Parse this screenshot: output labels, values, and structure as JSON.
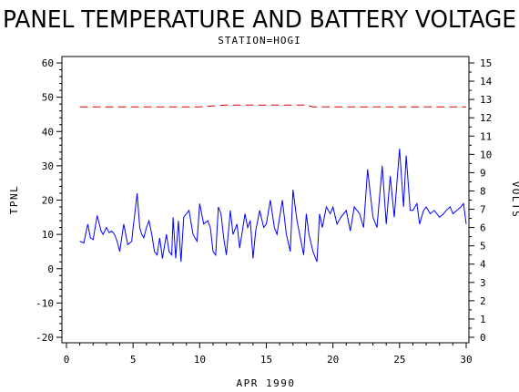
{
  "chart_data": {
    "type": "line",
    "title": "PANEL TEMPERATURE AND BATTERY VOLTAGE",
    "subtitle": "STATION=HOGI",
    "xlabel": "APR 1990",
    "ylabel_left": "TPNL",
    "ylabel_right": "VOLTS",
    "xlim": [
      0,
      30
    ],
    "ylim_left": [
      -20,
      60
    ],
    "ylim_right": [
      0,
      15
    ],
    "x_ticks": [
      "0",
      "5",
      "10",
      "15",
      "20",
      "25",
      "30"
    ],
    "y_ticks_left": [
      "-20",
      "-10",
      "0",
      "10",
      "20",
      "30",
      "40",
      "50",
      "60"
    ],
    "y_ticks_right": [
      "0",
      "1",
      "2",
      "3",
      "4",
      "5",
      "6",
      "7",
      "8",
      "9",
      "10",
      "11",
      "12",
      "13",
      "14",
      "15"
    ],
    "grid": false,
    "colors": {
      "temperature": "#0000ff",
      "voltage": "#e00000",
      "axes": "#000000"
    },
    "series": [
      {
        "axis": "left",
        "x": [
          1.0,
          1.3,
          1.6,
          1.8,
          2.0,
          2.3,
          2.6,
          2.75,
          3.0,
          3.2,
          3.4,
          3.6,
          3.8,
          4.0,
          4.3,
          4.6,
          4.9,
          5.0,
          5.1,
          5.3,
          5.5,
          5.65,
          5.8,
          6.0,
          6.2,
          6.4,
          6.6,
          6.8,
          7.0,
          7.2,
          7.5,
          7.7,
          7.9,
          8.0,
          8.2,
          8.4,
          8.6,
          8.8,
          9.0,
          9.2,
          9.5,
          9.8,
          10.0,
          10.3,
          10.6,
          10.8,
          11.0,
          11.2,
          11.4,
          11.6,
          11.8,
          12.0,
          12.3,
          12.5,
          12.8,
          13.0,
          13.2,
          13.4,
          13.6,
          13.8,
          14.0,
          14.2,
          14.5,
          14.8,
          15.0,
          15.3,
          15.6,
          15.8,
          16.0,
          16.2,
          16.5,
          16.8,
          17.0,
          17.3,
          17.5,
          17.8,
          18.0,
          18.2,
          18.5,
          18.8,
          19.0,
          19.2,
          19.5,
          19.8,
          20.0,
          20.3,
          20.6,
          21.0,
          21.3,
          21.6,
          22.0,
          22.3,
          22.6,
          23.0,
          23.3,
          23.5,
          23.7,
          24.0,
          24.3,
          24.6,
          25.0,
          25.3,
          25.5,
          25.8,
          26.0,
          26.3,
          26.5,
          26.8,
          27.0,
          27.3,
          27.6,
          28.0,
          28.3,
          28.5,
          28.8,
          29.0,
          29.3,
          29.6,
          29.8,
          30.0
        ],
        "y": [
          8,
          7.5,
          13,
          9,
          8.5,
          15.5,
          11,
          10,
          12,
          10.5,
          11,
          10,
          8,
          5,
          13,
          7,
          8,
          12,
          15,
          22,
          12,
          10,
          9,
          12,
          14,
          10,
          5,
          4,
          9,
          3,
          10,
          5,
          4,
          15,
          3,
          14,
          2,
          15,
          16,
          17,
          10,
          8,
          19,
          13,
          14,
          12,
          5,
          4,
          18,
          16,
          9,
          4,
          17,
          10,
          13,
          6,
          11,
          16,
          12,
          14,
          3,
          11,
          17,
          12,
          13,
          20,
          12,
          10,
          15,
          20,
          10,
          5,
          23,
          14,
          10,
          4,
          16,
          10,
          5,
          2,
          16,
          12,
          18,
          16,
          18,
          13,
          15,
          17,
          11,
          18,
          16,
          12,
          29,
          15,
          12,
          21,
          30,
          13,
          27,
          15,
          35,
          18,
          33,
          17,
          17,
          19,
          13,
          17,
          18,
          16,
          17,
          15,
          16,
          17,
          18,
          16,
          17,
          18,
          19,
          13
        ]
      },
      {
        "axis": "right",
        "x": [
          1,
          5,
          10,
          12,
          15,
          17,
          18,
          18.5,
          19,
          22,
          25,
          28,
          30
        ],
        "y": [
          12.6,
          12.6,
          12.6,
          12.7,
          12.7,
          12.7,
          12.7,
          12.6,
          12.6,
          12.6,
          12.6,
          12.6,
          12.6
        ]
      }
    ]
  }
}
